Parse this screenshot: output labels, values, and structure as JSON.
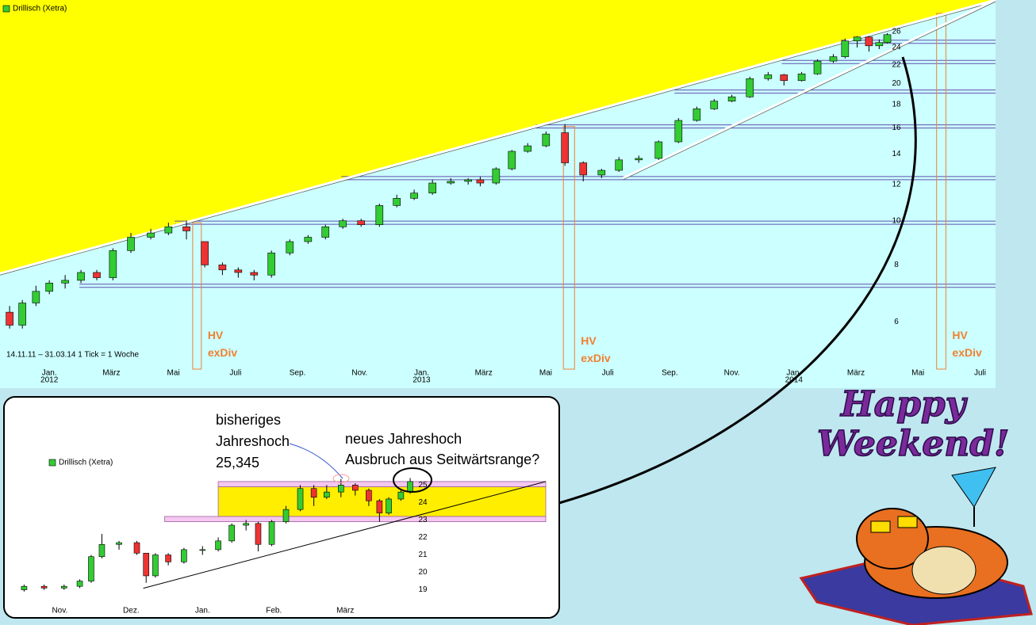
{
  "chart_data": [
    {
      "type": "candlestick",
      "legend": "Drillisch (Xetra)",
      "footnote": "14.11.11 – 31.03.14   1 Tick = 1 Woche",
      "log_scale": true,
      "up_color": "#33cc33",
      "down_color": "#ee3333",
      "xlim": [
        -1.59,
        30.5
      ],
      "ylim": [
        4.84,
        30.5
      ],
      "yticks": [
        6,
        8,
        10,
        12,
        14,
        16,
        18,
        20,
        22,
        24,
        26
      ],
      "xticks": [
        {
          "value": 0,
          "label": "Jan."
        },
        {
          "value": 2,
          "label": "März"
        },
        {
          "value": 4,
          "label": "Mai"
        },
        {
          "value": 6,
          "label": "Juli"
        },
        {
          "value": 8,
          "label": "Sep."
        },
        {
          "value": 10,
          "label": "Nov."
        },
        {
          "value": 12,
          "label": "Jan."
        },
        {
          "value": 14,
          "label": "März"
        },
        {
          "value": 16,
          "label": "Mai"
        },
        {
          "value": 18,
          "label": "Juli"
        },
        {
          "value": 20,
          "label": "Sep."
        },
        {
          "value": 22,
          "label": "Nov."
        },
        {
          "value": 24,
          "label": "Jan."
        },
        {
          "value": 26,
          "label": "März"
        },
        {
          "value": 28,
          "label": "Mai"
        },
        {
          "value": 30,
          "label": "Juli"
        }
      ],
      "year_labels": [
        {
          "value": 0,
          "label": "2012"
        },
        {
          "value": 12,
          "label": "2013"
        },
        {
          "value": 24,
          "label": "2014"
        }
      ],
      "x": [
        -1.28,
        -0.87,
        -0.43,
        0,
        0.51,
        1.02,
        1.53,
        2.05,
        2.63,
        3.27,
        3.84,
        4.42,
        5.01,
        5.58,
        6.09,
        6.6,
        7.16,
        7.75,
        8.34,
        8.9,
        9.46,
        10.05,
        10.64,
        11.2,
        11.76,
        12.35,
        12.94,
        13.5,
        13.89,
        14.4,
        14.91,
        15.42,
        16.01,
        16.62,
        17.21,
        17.8,
        18.36,
        19.0,
        19.64,
        20.28,
        20.87,
        21.43,
        22.0,
        22.58,
        23.17,
        23.68,
        24.25,
        24.76,
        25.27,
        25.65,
        26.04,
        26.42,
        26.75,
        27.01
      ],
      "open": [
        6.3,
        5.9,
        6.6,
        7.0,
        7.3,
        7.4,
        7.7,
        7.5,
        8.6,
        9.2,
        9.4,
        9.7,
        9.0,
        8.0,
        7.8,
        7.7,
        7.6,
        8.5,
        9.0,
        9.2,
        9.7,
        10.0,
        9.8,
        10.8,
        11.2,
        11.5,
        12.1,
        12.2,
        12.3,
        12.1,
        13.0,
        14.2,
        14.6,
        15.6,
        13.4,
        12.6,
        12.9,
        13.6,
        13.7,
        14.9,
        16.6,
        17.6,
        18.3,
        18.7,
        20.5,
        20.9,
        20.3,
        21.0,
        22.4,
        22.9,
        24.8,
        25.3,
        24.2,
        24.6
      ],
      "high": [
        6.5,
        6.7,
        7.2,
        7.4,
        7.6,
        7.8,
        7.8,
        8.7,
        9.4,
        9.6,
        9.9,
        10.0,
        9.0,
        8.1,
        7.9,
        7.8,
        8.6,
        9.1,
        9.3,
        9.8,
        10.1,
        10.1,
        10.9,
        11.4,
        11.7,
        12.3,
        12.4,
        12.4,
        12.5,
        13.1,
        14.3,
        14.8,
        15.7,
        16.3,
        13.5,
        13.0,
        13.8,
        13.9,
        15.0,
        16.8,
        17.8,
        18.5,
        18.9,
        20.7,
        21.2,
        21.0,
        21.2,
        22.6,
        23.2,
        25.1,
        25.4,
        25.4,
        25.0,
        25.8
      ],
      "low": [
        5.8,
        5.8,
        6.5,
        6.9,
        7.1,
        7.3,
        7.4,
        7.4,
        8.5,
        9.1,
        9.3,
        9.1,
        7.9,
        7.6,
        7.5,
        7.4,
        7.5,
        8.4,
        8.9,
        9.1,
        9.6,
        9.7,
        9.7,
        10.7,
        11.1,
        11.4,
        12.0,
        12.0,
        11.9,
        12.0,
        12.9,
        14.1,
        14.5,
        13.2,
        12.2,
        12.4,
        12.8,
        13.4,
        13.6,
        14.8,
        16.5,
        17.5,
        18.2,
        18.6,
        20.3,
        19.8,
        20.2,
        20.9,
        22.2,
        22.7,
        24.0,
        23.5,
        23.8,
        24.5
      ],
      "close": [
        5.9,
        6.6,
        7.0,
        7.3,
        7.4,
        7.7,
        7.5,
        8.6,
        9.2,
        9.4,
        9.7,
        9.5,
        8.0,
        7.8,
        7.7,
        7.6,
        8.5,
        9.0,
        9.2,
        9.7,
        10.0,
        9.8,
        10.8,
        11.2,
        11.5,
        12.1,
        12.2,
        12.3,
        12.1,
        13.0,
        14.2,
        14.6,
        15.5,
        13.4,
        12.6,
        12.9,
        13.6,
        13.7,
        14.9,
        16.6,
        17.6,
        18.3,
        18.7,
        20.5,
        20.9,
        20.3,
        21.0,
        22.4,
        22.9,
        24.8,
        25.3,
        24.2,
        24.6,
        25.6
      ],
      "hlines": [
        {
          "value": 7.2,
          "from": 0.97
        },
        {
          "value": 9.9,
          "from": 4.04
        },
        {
          "value": 12.4,
          "from": 9.41
        },
        {
          "value": 16.1,
          "from": 15.68
        },
        {
          "value": 19.2,
          "from": 20.15
        },
        {
          "value": 22.3,
          "from": 23.61
        },
        {
          "value": 24.7,
          "from": 25.52
        }
      ],
      "trendlines": [
        {
          "x": [
            -1.59,
            30.5
          ],
          "y": [
            7.66,
            30.5
          ],
          "fill_above": "#ffff00"
        },
        {
          "x": [
            18.49,
            30.5
          ],
          "y": [
            12.4,
            30.5
          ]
        }
      ],
      "events": [
        {
          "x": [
            4.62,
            4.9
          ],
          "top": 9.9,
          "label": "HV",
          "sublabel": "exDiv"
        },
        {
          "x": [
            16.57,
            16.93
          ],
          "top": 16.1,
          "label": "HV",
          "sublabel": "exDiv"
        },
        {
          "x": [
            28.6,
            28.9
          ],
          "top": 28.5,
          "label": "HV",
          "sublabel": "exDiv"
        }
      ]
    },
    {
      "type": "candlestick",
      "legend": "Drillisch (Xetra)",
      "up_color": "#33cc33",
      "down_color": "#ee3333",
      "xlim": [
        -0.56,
        6.81
      ],
      "ylim": [
        18.3,
        25.65
      ],
      "yticks": [
        19,
        20,
        21,
        22,
        23,
        24,
        25
      ],
      "xticks": [
        {
          "value": 0,
          "label": "Nov."
        },
        {
          "value": 1,
          "label": "Dez."
        },
        {
          "value": 2,
          "label": "Jan."
        },
        {
          "value": 3,
          "label": "Feb."
        },
        {
          "value": 4,
          "label": "März"
        }
      ],
      "x": [
        -0.5,
        -0.22,
        0.06,
        0.28,
        0.44,
        0.59,
        0.83,
        1.08,
        1.21,
        1.34,
        1.52,
        1.74,
        2.0,
        2.22,
        2.41,
        2.61,
        2.78,
        2.97,
        3.17,
        3.37,
        3.56,
        3.74,
        3.94,
        4.14,
        4.33,
        4.48,
        4.61,
        4.78,
        4.91
      ],
      "open": [
        19.0,
        19.2,
        19.1,
        19.2,
        19.5,
        20.9,
        21.6,
        21.7,
        21.1,
        19.8,
        21.0,
        20.6,
        21.3,
        21.3,
        21.8,
        22.7,
        22.8,
        21.6,
        22.9,
        23.6,
        24.8,
        24.3,
        24.6,
        25.0,
        24.7,
        24.1,
        23.4,
        24.2,
        24.6
      ],
      "high": [
        19.3,
        19.3,
        19.3,
        19.6,
        21.0,
        22.2,
        21.8,
        21.8,
        21.1,
        21.1,
        21.1,
        21.4,
        21.5,
        22.0,
        22.8,
        23.0,
        22.9,
        23.0,
        23.8,
        25.0,
        25.0,
        25.0,
        25.35,
        25.1,
        24.8,
        24.2,
        24.3,
        24.7,
        25.4
      ],
      "low": [
        18.9,
        19.0,
        19.0,
        19.1,
        19.4,
        20.8,
        21.3,
        21.0,
        19.4,
        19.7,
        20.4,
        20.5,
        21.0,
        21.2,
        21.7,
        22.4,
        21.2,
        21.5,
        22.8,
        23.5,
        23.8,
        24.2,
        24.3,
        24.4,
        23.8,
        22.9,
        23.3,
        24.1,
        24.5
      ],
      "close": [
        19.2,
        19.1,
        19.2,
        19.5,
        20.9,
        21.6,
        21.7,
        21.1,
        19.8,
        21.0,
        20.6,
        21.3,
        21.3,
        21.8,
        22.7,
        22.8,
        21.6,
        22.9,
        23.6,
        24.8,
        24.3,
        24.6,
        25.0,
        24.7,
        24.1,
        23.4,
        24.2,
        24.6,
        25.2
      ],
      "bands": [
        {
          "from": 2.22,
          "lo": 24.9,
          "hi": 25.2,
          "color": "#f4c8f0"
        },
        {
          "from": 2.22,
          "lo": 23.2,
          "hi": 24.9,
          "color": "#ffee00"
        },
        {
          "from": 1.47,
          "lo": 22.9,
          "hi": 23.2,
          "color": "#f4c8f0"
        }
      ],
      "trendlines": [
        {
          "x": [
            1.17,
            6.81
          ],
          "y": [
            19.09,
            25.2
          ]
        }
      ],
      "annotations": [
        {
          "lines": [
            "bisheriges",
            "Jahreshoch",
            "25,345"
          ]
        },
        {
          "lines": [
            "neues Jahreshoch",
            "Ausbruch aus Seitwärtsrange?"
          ]
        }
      ]
    }
  ],
  "greeting": {
    "lines": [
      "Happy",
      "Weekend!"
    ]
  }
}
